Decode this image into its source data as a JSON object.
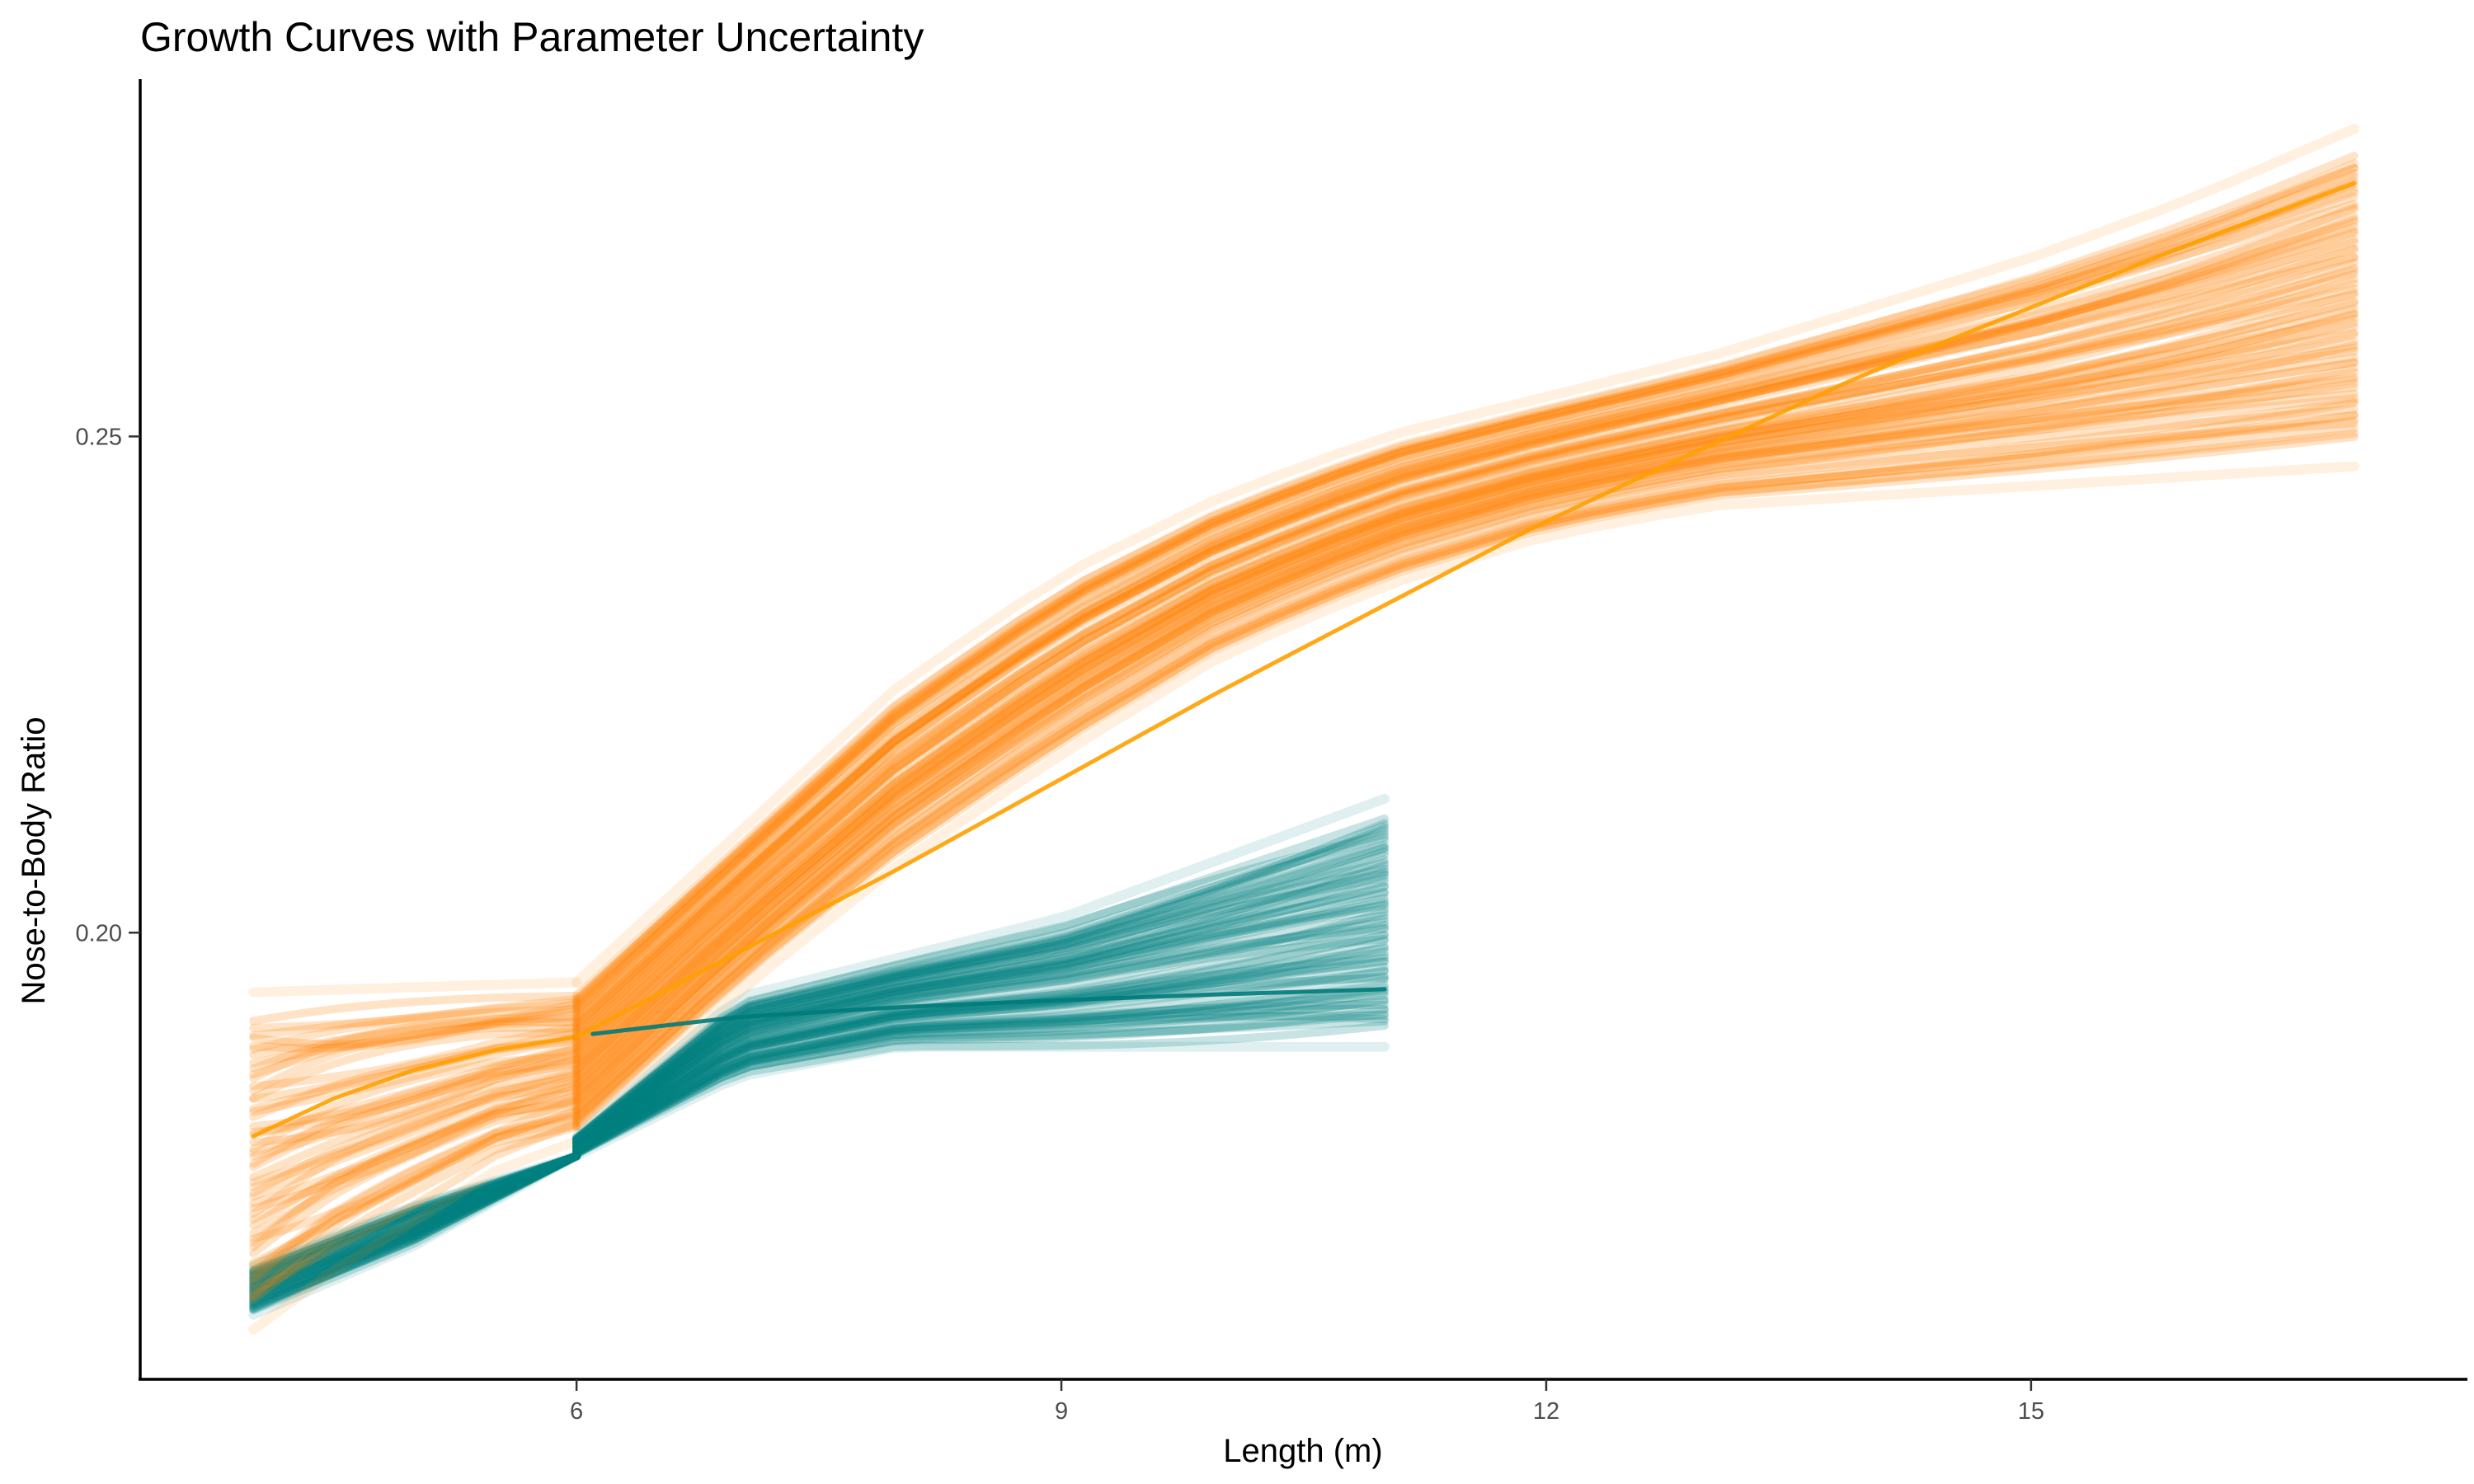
{
  "chart_data": {
    "type": "line",
    "title": "Growth Curves with Parameter Uncertainty",
    "xlabel": "Length (m)",
    "ylabel": "Nose-to-Body Ratio",
    "xlim": [
      3.3,
      17.7
    ],
    "ylim": [
      0.155,
      0.286
    ],
    "xticks": [
      6,
      9,
      12,
      15
    ],
    "yticks": [
      0.2,
      0.25
    ],
    "xtick_labels": [
      "6",
      "9",
      "12",
      "15"
    ],
    "ytick_labels": [
      "0.20",
      "0.25"
    ],
    "grid": false,
    "legend": "none",
    "colors": {
      "orange": "#ff8000",
      "teal": "#008080",
      "axis": "#000000",
      "tick_text": "#4d4d4d"
    },
    "series": [
      {
        "group": "orange",
        "segment": "early",
        "x_range": [
          4.0,
          6.0
        ],
        "mean_curve": {
          "x": [
            4.0,
            4.5,
            5.0,
            5.5,
            6.0
          ],
          "y": [
            0.1795,
            0.1833,
            0.1862,
            0.1882,
            0.1895
          ]
        },
        "band_upper": {
          "x": [
            4.0,
            6.0
          ],
          "y": [
            0.194,
            0.195
          ]
        },
        "band_lower": {
          "x": [
            4.0,
            4.5,
            5.0,
            5.5,
            6.0
          ],
          "y": [
            0.16,
            0.166,
            0.171,
            0.176,
            0.179
          ]
        }
      },
      {
        "group": "orange",
        "segment": "late",
        "x_range": [
          6.0,
          17.0
        ],
        "mean_curve": {
          "x": [
            6.0,
            8.0,
            10.0,
            12.0,
            14.0,
            16.0,
            17.0
          ],
          "y": [
            0.1895,
            0.2065,
            0.2245,
            0.2415,
            0.2565,
            0.2695,
            0.2755
          ]
        },
        "band_upper": {
          "x": [
            6.0,
            7.0,
            8.0,
            9.0,
            10.0,
            11.0,
            12.0,
            13.0,
            14.0,
            15.0,
            16.0,
            17.0
          ],
          "y": [
            0.195,
            0.21,
            0.225,
            0.236,
            0.244,
            0.25,
            0.254,
            0.258,
            0.263,
            0.268,
            0.274,
            0.281
          ]
        },
        "band_lower": {
          "x": [
            6.0,
            7.0,
            8.0,
            9.0,
            10.0,
            11.0,
            12.0,
            13.0,
            14.0,
            15.0,
            16.0,
            17.0
          ],
          "y": [
            0.179,
            0.194,
            0.207,
            0.218,
            0.228,
            0.235,
            0.24,
            0.243,
            0.244,
            0.245,
            0.246,
            0.247
          ]
        }
      },
      {
        "group": "teal",
        "segment": "early",
        "x_range": [
          4.0,
          6.0
        ],
        "band_upper": {
          "x": [
            4.0,
            5.0,
            6.0
          ],
          "y": [
            0.1665,
            0.1725,
            0.1775
          ]
        },
        "band_lower": {
          "x": [
            4.0,
            5.0,
            6.0
          ],
          "y": [
            0.1615,
            0.1685,
            0.1775
          ]
        }
      },
      {
        "group": "teal",
        "segment": "late",
        "x_range": [
          6.0,
          11.0
        ],
        "mean_curve": {
          "x": [
            6.1,
            7.0,
            8.0,
            9.0,
            10.0,
            11.0
          ],
          "y": [
            0.1898,
            0.1915,
            0.1925,
            0.1932,
            0.1938,
            0.1943
          ]
        },
        "band_upper": {
          "x": [
            6.0,
            7.0,
            8.0,
            9.0,
            10.0,
            11.0
          ],
          "y": [
            0.1795,
            0.1935,
            0.1975,
            0.2015,
            0.2075,
            0.2135
          ]
        },
        "band_lower": {
          "x": [
            6.0,
            7.0,
            8.0,
            9.0,
            10.0,
            11.0
          ],
          "y": [
            0.1775,
            0.1855,
            0.1885,
            0.1885,
            0.1885,
            0.1885
          ]
        }
      }
    ]
  }
}
